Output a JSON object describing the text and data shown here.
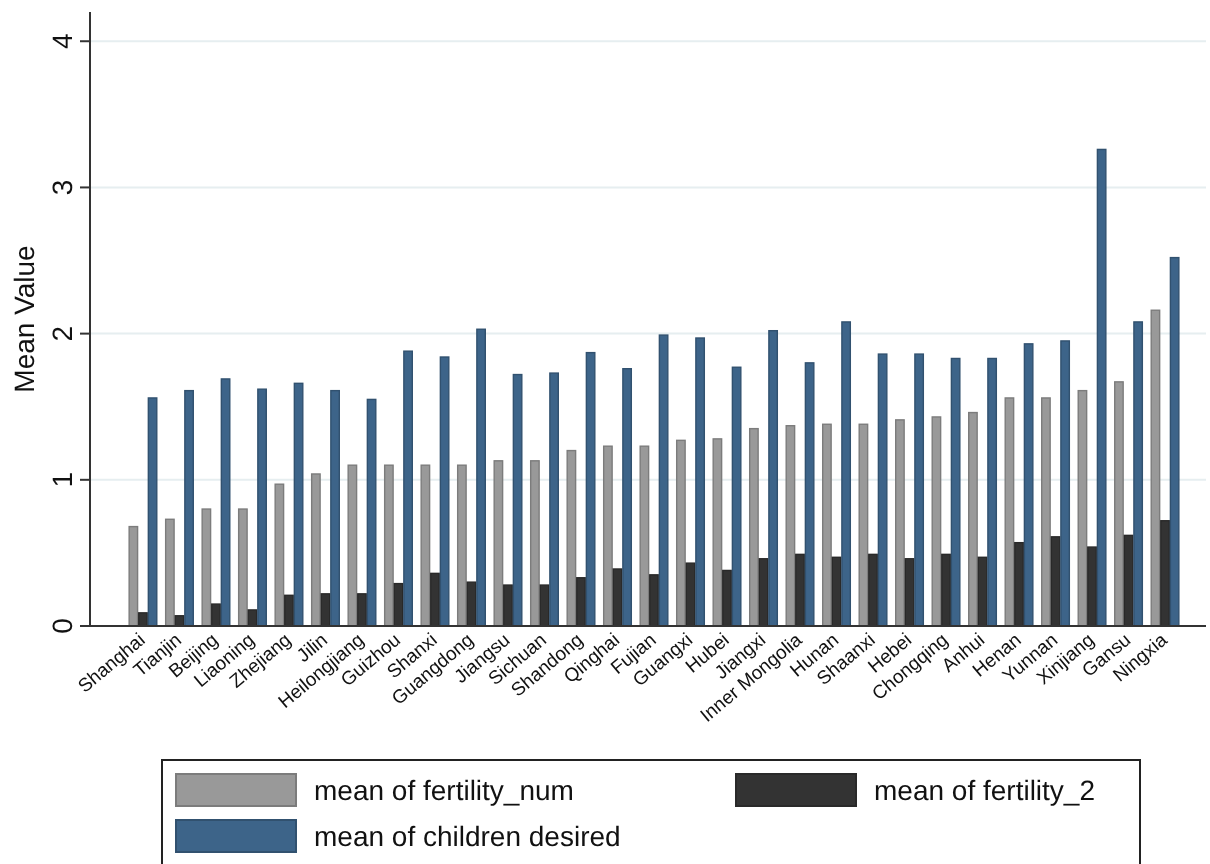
{
  "chart_data": {
    "type": "bar",
    "ylabel": "Mean Value",
    "categories": [
      "Shanghai",
      "Tianjin",
      "Beijing",
      "Liaoning",
      "Zhejiang",
      "Jilin",
      "Heilongjiang",
      "Guizhou",
      "Shanxi",
      "Guangdong",
      "Jiangsu",
      "Sichuan",
      "Shandong",
      "Qinghai",
      "Fujian",
      "Guangxi",
      "Hubei",
      "Jiangxi",
      "Inner Mongolia",
      "Hunan",
      "Shaanxi",
      "Hebei",
      "Chongqing",
      "Anhui",
      "Henan",
      "Yunnan",
      "Xinjiang",
      "Gansu",
      "Ningxia"
    ],
    "series": [
      {
        "name": "mean of fertility_num",
        "color": "#999999",
        "values": [
          0.68,
          0.73,
          0.8,
          0.8,
          0.97,
          1.04,
          1.1,
          1.1,
          1.1,
          1.1,
          1.13,
          1.13,
          1.2,
          1.23,
          1.23,
          1.27,
          1.28,
          1.35,
          1.37,
          1.38,
          1.38,
          1.41,
          1.43,
          1.46,
          1.56,
          1.56,
          1.61,
          1.67,
          2.16
        ]
      },
      {
        "name": "mean of fertility_2",
        "color": "#333333",
        "values": [
          0.09,
          0.07,
          0.15,
          0.11,
          0.21,
          0.22,
          0.22,
          0.29,
          0.36,
          0.3,
          0.28,
          0.28,
          0.33,
          0.39,
          0.35,
          0.43,
          0.38,
          0.46,
          0.49,
          0.47,
          0.49,
          0.46,
          0.49,
          0.47,
          0.57,
          0.61,
          0.54,
          0.62,
          0.72
        ]
      },
      {
        "name": "mean of children desired",
        "color": "#3d6489",
        "values": [
          1.56,
          1.61,
          1.69,
          1.62,
          1.66,
          1.61,
          1.55,
          1.88,
          1.84,
          2.03,
          1.72,
          1.73,
          1.87,
          1.76,
          1.99,
          1.97,
          1.77,
          2.02,
          1.8,
          2.08,
          1.86,
          1.86,
          1.83,
          1.83,
          1.93,
          1.95,
          3.26,
          2.08,
          2.52
        ]
      }
    ],
    "ylim": [
      0,
      4.2
    ],
    "yticks": [
      0,
      1,
      2,
      3,
      4
    ],
    "grid": "y",
    "legend": "bottom"
  }
}
